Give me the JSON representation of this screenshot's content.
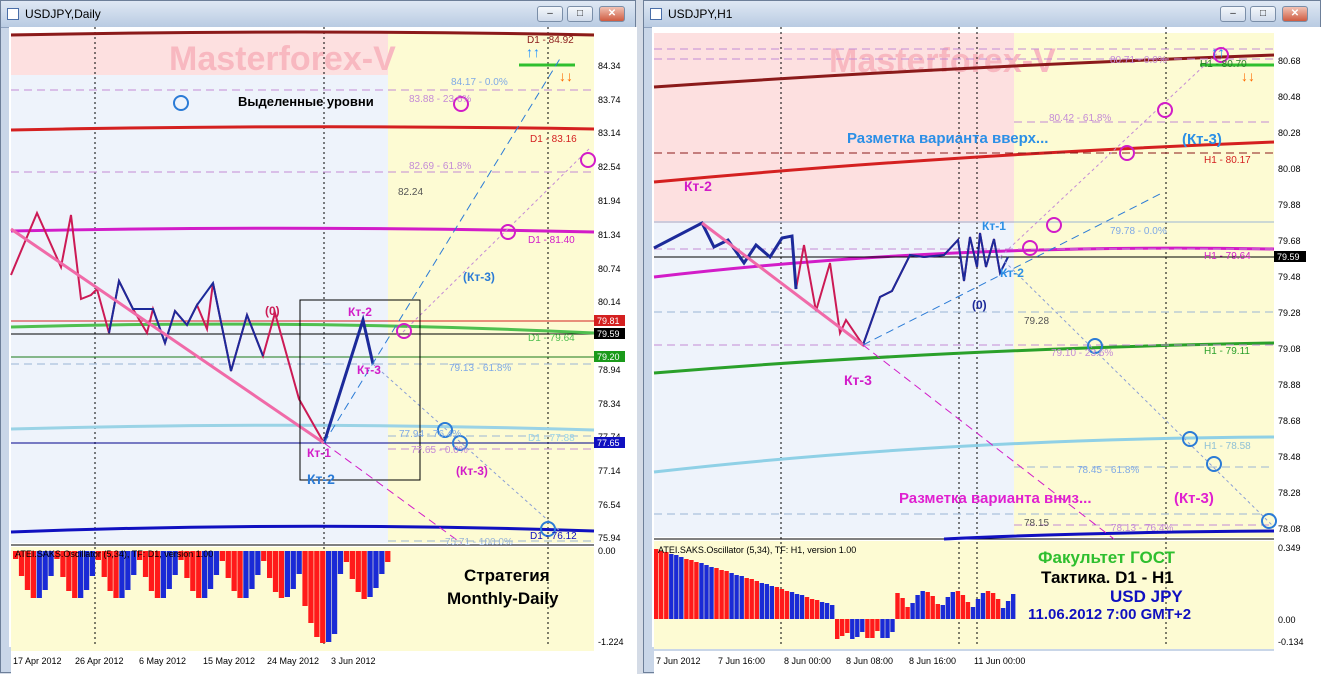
{
  "left_window": {
    "title": "USDJPY,Daily",
    "watermark": "Masterforex-V",
    "heading": "Выделенные уровни",
    "strategy_line1": "Стратегия",
    "strategy_line2": "Monthly-Daily",
    "oscillator_label": "ATEI.SAKS.Oscillator (5,34), TF: D1, version 1.00",
    "osc_top_value": "0.00",
    "osc_bottom_value": "-1.224",
    "price_axis": [
      "84.34",
      "83.74",
      "83.14",
      "82.54",
      "81.94",
      "81.34",
      "80.74",
      "80.14",
      "79.54",
      "78.94",
      "78.34",
      "77.74",
      "77.14",
      "76.54",
      "75.94"
    ],
    "price_tags": {
      "red": "79.81",
      "black": "79.59",
      "green": "79.20",
      "blue": "77.65"
    },
    "date_axis": [
      "17 Apr 2012",
      "26 Apr 2012",
      "6 May 2012",
      "15 May 2012",
      "24 May 2012",
      "3 Jun 2012"
    ],
    "levels": {
      "d1_top": "D1 - 84.92",
      "fib_0": "84.17 - 0.0%",
      "fib_236": "83.88 - 23.6%",
      "d1_red": "D1 - 83.16",
      "fib_618_a": "82.69 - 61.8%",
      "lvl_a": "82.24",
      "d1_magenta": "D1 - 81.40",
      "d1_green": "D1 - 79.64",
      "fib_618_b": "79.13 - 61.8%",
      "fib_764": "77.94 - 76.4%",
      "d1_cyan": "D1 - 77.88",
      "fib_0_b": "77.65 - 0.0%",
      "fib_100": "75.71 - 100.0%",
      "d1_bottom": "D1 - 76.12"
    },
    "labels": {
      "zero": "(0)",
      "kt2": "Кт-2",
      "kt3": "Кт-3",
      "kt1": "Кт-1",
      "kt2_blue": "Кт-2",
      "kt3_blue": "(Кт-3)",
      "kt3_mag": "(Кт-3)"
    }
  },
  "right_window": {
    "title": "USDJPY,H1",
    "watermark": "Masterforex-V",
    "up_heading": "Разметка варианта вверх...",
    "up_kt3": "(Кт-3)",
    "down_heading": "Разметка варианта вниз...",
    "down_kt3": "(Кт-3)",
    "faculty": "Факультет ГОСТ",
    "tactic": "Тактика. D1 - H1",
    "symbol": "USD JPY",
    "datetime": "11.06.2012 7:00 GMT+2",
    "oscillator_label": "ATEI.SAKS.Oscillator (5,34), TF: H1, version 1.00",
    "osc_top_value": "0.349",
    "osc_mid_value": "0.00",
    "osc_bottom_value": "-0.134",
    "price_axis": [
      "80.68",
      "80.48",
      "80.28",
      "80.08",
      "79.88",
      "79.68",
      "79.48",
      "79.28",
      "79.08",
      "78.88",
      "78.68",
      "78.48",
      "78.28",
      "78.08"
    ],
    "price_tag": "79.59",
    "date_axis": [
      "7 Jun 2012",
      "7 Jun 16:00",
      "8 Jun 00:00",
      "8 Jun 08:00",
      "8 Jun 16:00",
      "11 Jun 00:00"
    ],
    "levels": {
      "h1_top": "H1 - 80.70",
      "fib_0_top": "80.71 - 0.0%",
      "fib_618": "80.42 - 61.8%",
      "h1_red": "H1 - 80.17",
      "fib_0": "79.78 - 0.0%",
      "h1_magenta": "H1 - 79.64",
      "lvl_a": "79.28",
      "fib_236": "79.10 - 23.6%",
      "h1_green": "H1 - 79.11",
      "h1_cyan": "H1 - 78.58",
      "fib_618_b": "78.45 - 61.8%",
      "lvl_b": "78.15",
      "fib_764": "78.13 - 76.4%"
    },
    "labels": {
      "kt2": "Кт-2",
      "kt1": "Кт-1",
      "kt2_blue": "Кт-2",
      "zero": "(0)",
      "kt3": "Кт-3"
    }
  }
}
